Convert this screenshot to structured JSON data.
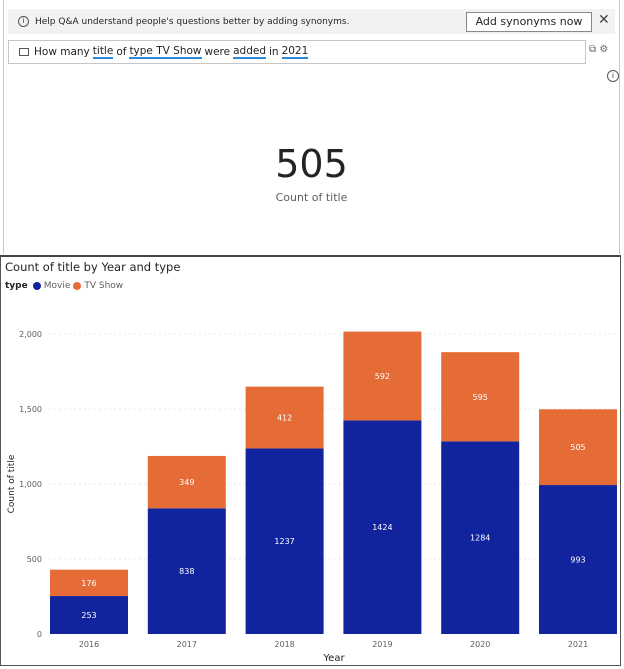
{
  "banner": {
    "text": "Help Q&A understand people's questions better by adding synonyms.",
    "button": "Add synonyms now",
    "close": "✕",
    "info_icon": "i"
  },
  "query": {
    "parts": [
      "How many",
      "title",
      "of",
      "type TV Show",
      "were",
      "added",
      "in",
      "2021"
    ]
  },
  "result": {
    "value": "505",
    "label": "Count of title"
  },
  "chart_data": {
    "type": "bar",
    "stacked": true,
    "title": "Count of title by Year and type",
    "legend_title": "type",
    "legend_position": "top-left",
    "xlabel": "Year",
    "ylabel": "Count of title",
    "categories": [
      "2016",
      "2017",
      "2018",
      "2019",
      "2020",
      "2021"
    ],
    "yticks": [
      "0",
      "500",
      "1,000",
      "1,500",
      "2,000"
    ],
    "ylim": [
      0,
      2000
    ],
    "series": [
      {
        "name": "Movie",
        "color": "#12239e",
        "values": [
          253,
          838,
          1237,
          1424,
          1284,
          993
        ]
      },
      {
        "name": "TV Show",
        "color": "#e66c37",
        "values": [
          176,
          349,
          412,
          592,
          595,
          505
        ]
      }
    ]
  }
}
